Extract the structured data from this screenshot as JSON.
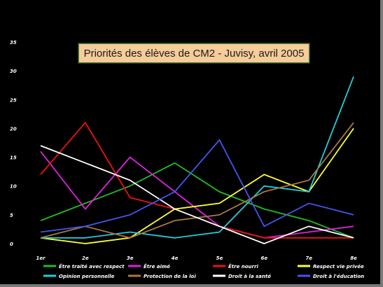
{
  "chart_data": {
    "type": "line",
    "title": "Priorités des élèves de CM2 - Juvisy, avril 2005",
    "categories": [
      "1er",
      "2e",
      "3e",
      "4e",
      "5e",
      "6e",
      "7e",
      "8e"
    ],
    "yticks": [
      "0",
      "5",
      "10",
      "15",
      "20",
      "25",
      "30",
      "35"
    ],
    "ylim": [
      0,
      35
    ],
    "grid": false,
    "legend_position": "bottom",
    "background": "#000000",
    "title_box_color": "#f5cc9a",
    "series": [
      {
        "name": "Être traité avec respect",
        "color": "#22bb22",
        "values": [
          4,
          7,
          10,
          14,
          9,
          6,
          4,
          1
        ]
      },
      {
        "name": "Être aimé",
        "color": "#dd22dd",
        "values": [
          16,
          6,
          15,
          9,
          3,
          1,
          2,
          3
        ]
      },
      {
        "name": "Être nourri",
        "color": "#ee1111",
        "values": [
          12,
          21,
          8,
          6,
          3,
          1,
          1,
          1
        ]
      },
      {
        "name": "Respect vie privée",
        "color": "#ffff33",
        "values": [
          1,
          0,
          1,
          6,
          7,
          12,
          9,
          20
        ]
      },
      {
        "name": "Opinion personnelle",
        "color": "#22ccdd",
        "values": [
          1,
          1,
          2,
          1,
          2,
          10,
          9,
          29
        ]
      },
      {
        "name": "Protection de la loi",
        "color": "#aa7744",
        "values": [
          1,
          3,
          1,
          4,
          5,
          9,
          11,
          21
        ]
      },
      {
        "name": "Droit à la santé",
        "color": "#ffffff",
        "values": [
          17,
          14,
          11,
          6,
          3,
          0,
          3,
          1
        ]
      },
      {
        "name": "Droit à  l'éducation",
        "color": "#4455ee",
        "values": [
          2,
          3,
          5,
          9,
          18,
          3,
          7,
          5
        ]
      }
    ]
  }
}
